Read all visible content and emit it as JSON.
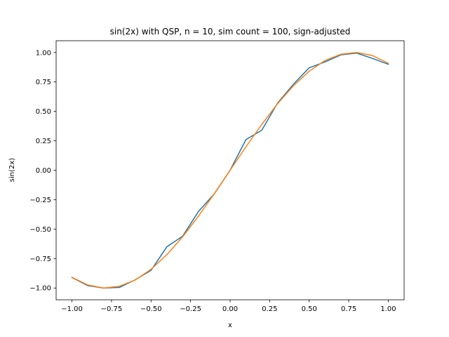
{
  "chart_data": {
    "type": "line",
    "title": "sin(2x) with QSP, n = 10, sim count = 100, sign-adjusted",
    "xlabel": "x",
    "ylabel": "sin(2x)",
    "xlim": [
      -1.1,
      1.1
    ],
    "ylim": [
      -1.1,
      1.1
    ],
    "grid": false,
    "x": [
      -1.0,
      -0.9,
      -0.8,
      -0.7,
      -0.6,
      -0.5,
      -0.4,
      -0.3,
      -0.2,
      -0.1,
      0.0,
      0.1,
      0.2,
      0.3,
      0.4,
      0.5,
      0.6,
      0.7,
      0.8,
      0.9,
      1.0
    ],
    "x_ticks": [
      -1.0,
      -0.75,
      -0.5,
      -0.25,
      0.0,
      0.25,
      0.5,
      0.75,
      1.0
    ],
    "x_tick_labels": [
      "−1.00",
      "−0.75",
      "−0.50",
      "−0.25",
      "0.00",
      "0.25",
      "0.50",
      "0.75",
      "1.00"
    ],
    "y_ticks": [
      -1.0,
      -0.75,
      -0.5,
      -0.25,
      0.0,
      0.25,
      0.5,
      0.75,
      1.0
    ],
    "y_tick_labels": [
      "−1.00",
      "−0.75",
      "−0.50",
      "−0.25",
      "0.00",
      "0.25",
      "0.50",
      "0.75",
      "1.00"
    ],
    "series": [
      {
        "color": "#1f77b4",
        "values": [
          -0.91,
          -0.98,
          -1.0,
          -0.995,
          -0.93,
          -0.85,
          -0.65,
          -0.56,
          -0.35,
          -0.2,
          0.0,
          0.26,
          0.34,
          0.57,
          0.73,
          0.87,
          0.92,
          0.98,
          0.995,
          0.95,
          0.9
        ]
      },
      {
        "color": "#ff7f0e",
        "values": [
          -0.909,
          -0.974,
          -1.0,
          -0.985,
          -0.932,
          -0.841,
          -0.717,
          -0.565,
          -0.389,
          -0.199,
          0.0,
          0.199,
          0.389,
          0.565,
          0.717,
          0.841,
          0.932,
          0.985,
          1.0,
          0.974,
          0.909
        ]
      }
    ]
  }
}
